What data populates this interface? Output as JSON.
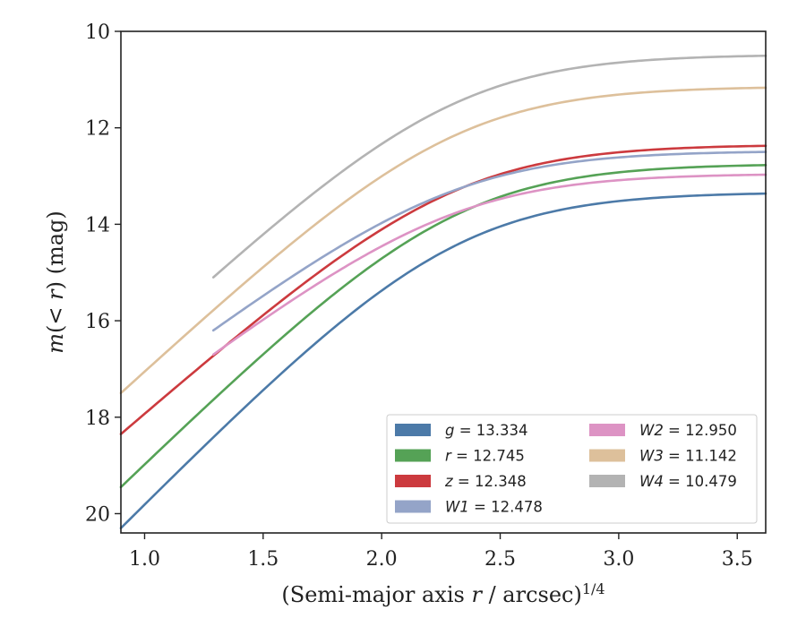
{
  "chart_data": {
    "type": "line",
    "xlabel_main": "(Semi-major axis ",
    "xlabel_var": "r",
    "xlabel_tail": " / arcsec)",
    "xlabel_exp": "1/4",
    "ylabel_var": "m",
    "ylabel_mid": "(< ",
    "ylabel_var2": "r",
    "ylabel_tail": ") (mag)",
    "xlim": [
      0.9,
      3.62
    ],
    "ylim": [
      20.4,
      10.0
    ],
    "y_inverted": true,
    "xticks": [
      1.0,
      1.5,
      2.0,
      2.5,
      3.0,
      3.5
    ],
    "xtick_labels": [
      "1.0",
      "1.5",
      "2.0",
      "2.5",
      "3.0",
      "3.5"
    ],
    "yticks": [
      10,
      12,
      14,
      16,
      18,
      20
    ],
    "ytick_labels": [
      "10",
      "12",
      "14",
      "16",
      "18",
      "20"
    ],
    "grid": false,
    "legend_position": "lower-right",
    "legend_columns": 2,
    "series": [
      {
        "band": "g",
        "value": "13.334",
        "color": "#4c7aa8",
        "x_start": 0.9,
        "x_end": 3.62,
        "mag_total": 13.334,
        "mag_inner": 20.3
      },
      {
        "band": "r",
        "value": "12.745",
        "color": "#55a256",
        "x_start": 0.9,
        "x_end": 3.62,
        "mag_total": 12.745,
        "mag_inner": 19.45
      },
      {
        "band": "z",
        "value": "12.348",
        "color": "#cc3a3e",
        "x_start": 0.9,
        "x_end": 3.62,
        "mag_total": 12.348,
        "mag_inner": 18.35
      },
      {
        "band": "W1",
        "value": "12.478",
        "color": "#94a4c8",
        "x_start": 1.29,
        "x_end": 3.62,
        "mag_total": 12.478,
        "mag_inner": 16.2
      },
      {
        "band": "W2",
        "value": "12.950",
        "color": "#dd93c4",
        "x_start": 1.29,
        "x_end": 3.62,
        "mag_total": 12.95,
        "mag_inner": 16.7
      },
      {
        "band": "W3",
        "value": "11.142",
        "color": "#ddc09b",
        "x_start": 0.9,
        "x_end": 3.62,
        "mag_total": 11.142,
        "mag_inner": 17.5
      },
      {
        "band": "W4",
        "value": "10.479",
        "color": "#b3b3b3",
        "x_start": 1.29,
        "x_end": 3.62,
        "mag_total": 10.479,
        "mag_inner": 15.1
      }
    ],
    "legend_entries": [
      {
        "label_var": "g",
        "label_value": "13.334",
        "color": "#4c7aa8"
      },
      {
        "label_var": "r",
        "label_value": "12.745",
        "color": "#55a256"
      },
      {
        "label_var": "z",
        "label_value": "12.348",
        "color": "#cc3a3e"
      },
      {
        "label_var": "W1",
        "label_value": "12.478",
        "color": "#94a4c8"
      },
      {
        "label_var": "W2",
        "label_value": "12.950",
        "color": "#dd93c4"
      },
      {
        "label_var": "W3",
        "label_value": "11.142",
        "color": "#ddc09b"
      },
      {
        "label_var": "W4",
        "label_value": "10.479",
        "color": "#b3b3b3"
      }
    ]
  }
}
